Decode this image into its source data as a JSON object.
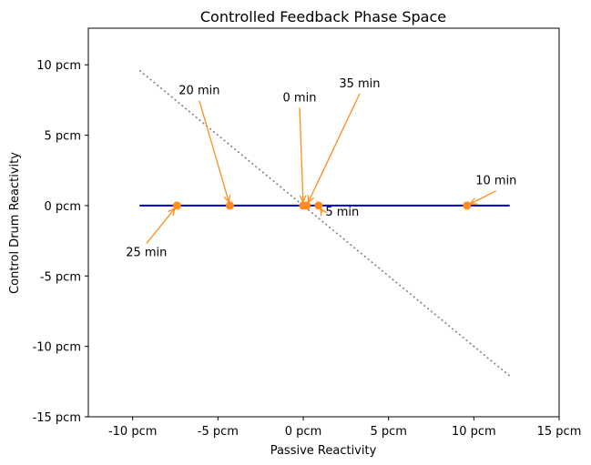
{
  "chart_data": {
    "type": "scatter",
    "title": "Controlled Feedback Phase Space",
    "xlabel": "Passive Reactivity",
    "ylabel": "Control Drum Reactivity",
    "xlim": [
      -12.6,
      15
    ],
    "ylim": [
      -15,
      12.6
    ],
    "x_ticks": [
      -10,
      -5,
      0,
      5,
      10,
      15
    ],
    "y_ticks": [
      -15,
      -10,
      -5,
      0,
      5,
      10
    ],
    "x_tick_labels": [
      "-10 pcm",
      "-5 pcm",
      "0 pcm",
      "5 pcm",
      "10 pcm",
      "15 pcm"
    ],
    "y_tick_labels": [
      "-15 pcm",
      "-10 pcm",
      "-5 pcm",
      "0 pcm",
      "5 pcm",
      "10 pcm"
    ],
    "grid": false,
    "colors": {
      "trajectory": "#0000cc",
      "points": "#ff8c1a",
      "arrows": "#ff8c1a",
      "diagonal": "#808080"
    },
    "trajectory": {
      "x": [
        -9.6,
        12.1
      ],
      "y": [
        0,
        0
      ]
    },
    "diagonal": {
      "x": [
        -9.6,
        12.1
      ],
      "y": [
        9.6,
        -12.1
      ]
    },
    "points": [
      {
        "label": "0 min",
        "x": 0.0,
        "y": 0.0,
        "text_x": -1.2,
        "text_y": 7.4
      },
      {
        "label": "5 min",
        "x": 0.9,
        "y": 0.0,
        "text_x": 1.3,
        "text_y": -0.7
      },
      {
        "label": "10 min",
        "x": 9.6,
        "y": 0.0,
        "text_x": 10.1,
        "text_y": 1.5
      },
      {
        "label": "20 min",
        "x": -4.3,
        "y": 0.0,
        "text_x": -7.3,
        "text_y": 7.9
      },
      {
        "label": "25 min",
        "x": -7.4,
        "y": 0.0,
        "text_x": -10.4,
        "text_y": -3.6
      },
      {
        "label": "35 min",
        "x": 0.2,
        "y": 0.0,
        "text_x": 2.1,
        "text_y": 8.4
      }
    ]
  }
}
